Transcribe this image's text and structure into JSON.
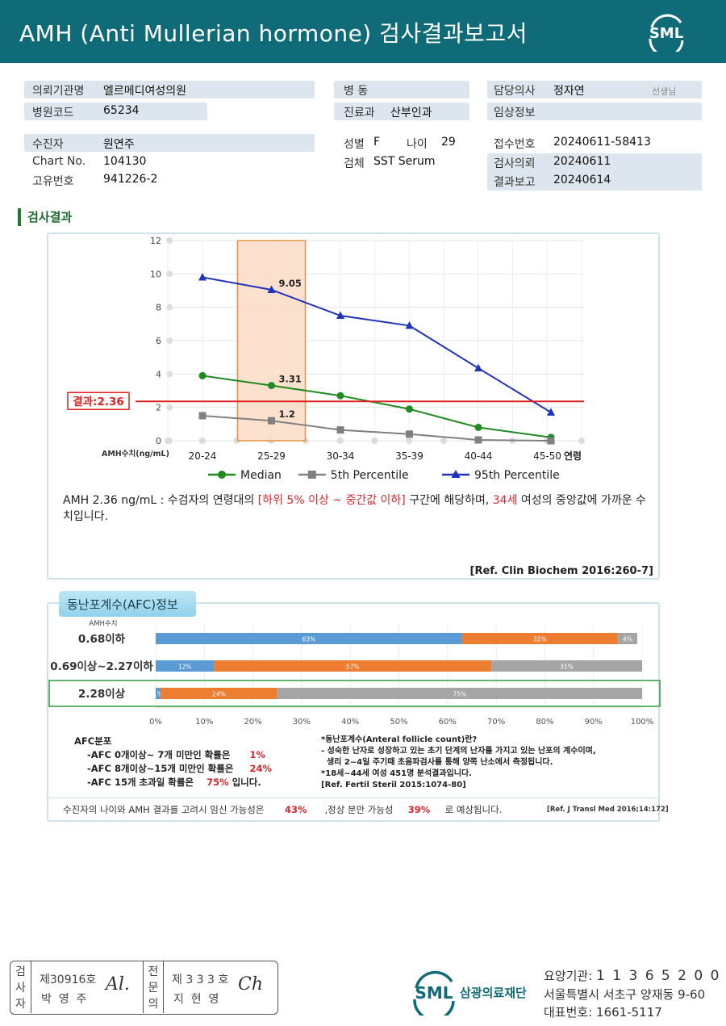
{
  "header": {
    "title": "AMH (Anti Mullerian hormone) 검사결과보고서",
    "logo_text": "SML"
  },
  "info": {
    "institution_label": "의뢰기관명",
    "institution": "엘르메디여성의원",
    "hospital_code_label": "병원코드",
    "hospital_code": "65234",
    "ward_label": "병 동",
    "ward": "",
    "dept_label": "진료과",
    "dept": "산부인과",
    "doctor_label": "담당의사",
    "doctor": "정자연",
    "doctor_suffix": "선생님",
    "clinical_label": "임상정보",
    "clinical": "",
    "patient_label": "수진자",
    "patient": "원연주",
    "chart_label": "Chart No.",
    "chart_no": "104130",
    "id_label": "고유번호",
    "id_no": "941226-2",
    "sex_label": "성별",
    "sex": "F",
    "age_label": "나이",
    "age": "29",
    "specimen_label": "검체",
    "specimen": "SST Serum",
    "receipt_label": "접수번호",
    "receipt": "20240611-58413",
    "request_label": "검사의뢰",
    "request_date": "20240611",
    "report_label": "결과보고",
    "report_date": "20240614"
  },
  "section_title": "검사결과",
  "chart_data": {
    "type": "line",
    "categories": [
      "20-24",
      "25-29",
      "30-34",
      "35-39",
      "40-44",
      "45-50"
    ],
    "xlabel": "연령",
    "ylabel": "AMH수치(ng/mL)",
    "ylim": [
      0,
      12
    ],
    "yticks": [
      0,
      2,
      4,
      6,
      8,
      10,
      12
    ],
    "grid": true,
    "highlight_category": "25-29",
    "result_line": {
      "label": "결과:2.36",
      "value": 2.36,
      "color": "#e02020"
    },
    "legend_position": "bottom",
    "series": [
      {
        "name": "Median",
        "color": "#1f8a1f",
        "marker": "circle",
        "values": [
          3.9,
          3.31,
          2.7,
          1.9,
          0.8,
          0.2
        ],
        "labels": [
          "",
          "3.31",
          "",
          "",
          "",
          ""
        ]
      },
      {
        "name": "5th Percentile",
        "color": "#808080",
        "marker": "square",
        "values": [
          1.5,
          1.2,
          0.65,
          0.4,
          0.05,
          0.0
        ],
        "labels": [
          "",
          "1.2",
          "",
          "",
          "",
          ""
        ]
      },
      {
        "name": "95th Percentile",
        "color": "#2233bb",
        "marker": "triangle",
        "values": [
          9.8,
          9.05,
          7.5,
          6.9,
          4.35,
          1.7
        ],
        "labels": [
          "",
          "9.05",
          "",
          "",
          "",
          ""
        ]
      }
    ]
  },
  "description": {
    "part1": "AMH  2.36 ng/mL : 수검자의 연령대의 ",
    "part2": "[하위 5% 이상 ~ 중간값 이하]",
    "part3": "  구간에 해당하며, ",
    "part4": "34세",
    "part5": " 여성의 중앙값에 가까운 수치입니다.",
    "ref": "[Ref. Clin Biochem 2016:260-7]"
  },
  "afc": {
    "tab": "동난포계수(AFC)정보",
    "amh_label": "AMH수치",
    "rows": [
      {
        "label": "0.68이하",
        "values": [
          63,
          32,
          4
        ],
        "labels": [
          "63%",
          "32%",
          "4%"
        ]
      },
      {
        "label": "0.69이상~2.27이하",
        "values": [
          12,
          57,
          31
        ],
        "labels": [
          "12%",
          "57%",
          "31%"
        ]
      },
      {
        "label": "2.28이상",
        "values": [
          1,
          24,
          75
        ],
        "labels": [
          "1%",
          "24%",
          "75%"
        ]
      }
    ],
    "highlight_row": "2.28이상",
    "axis_ticks": [
      "0%",
      "10%",
      "20%",
      "30%",
      "40%",
      "50%",
      "60%",
      "70%",
      "80%",
      "90%",
      "100%"
    ],
    "colors": [
      "#5b9bd5",
      "#ed7d31",
      "#a5a5a5"
    ],
    "dist_title": "AFC분포",
    "dist": [
      {
        "text": "-AFC  0개이상~ 7개 미만인 확률은",
        "pct": "1%",
        "suffix": ""
      },
      {
        "text": "-AFC  8개이상~15개 미만인 확률은",
        "pct": "24%",
        "suffix": ""
      },
      {
        "text": "-AFC  15개 초과일 확률은",
        "pct": "75%",
        "suffix": " 입니다."
      }
    ],
    "note1": "*동난포계수(Anteral follicle count)란?",
    "note2": "- 성숙한 난자로 성장하고 있는 초기 단계의 난자를 가지고 있는 난포의 계수이며,",
    "note3": "  생리 2~4일 주기때 초음파검사를 통해 양쪽 난소에서 측정됩니다.",
    "note4": "*18세~44세 여성 451명 분석결과입니다.",
    "note5": "[Ref. Fertil Steril 2015:1074-80]"
  },
  "pregnancy": {
    "text1": "수진자의  나이와 AMH 결과를 고려시 임신 가능성은",
    "pct1": "43%",
    "text2": ",정상 분만 가능성",
    "pct2": "39%",
    "text3": "로 예상됩니다.",
    "ref": "[Ref. J Transl Med 2016;14:172]"
  },
  "footer": {
    "col1_label": [
      "검",
      "사",
      "자"
    ],
    "examiner_no": "제30916호",
    "examiner_name": "박  영  주",
    "col2_label": [
      "전",
      "문",
      "의"
    ],
    "specialist_no": "제 3 3 3 호",
    "specialist_name": "지  현  영",
    "org_name": "삼광의료재단",
    "logo_text": "SML",
    "code_label": "요양기관: ",
    "code": "1 1 3 6 5 2 0 0",
    "address": "서울특별시 서초구 양재동 9-60",
    "phone_label": "대표번호: ",
    "phone": "1661-5117"
  }
}
